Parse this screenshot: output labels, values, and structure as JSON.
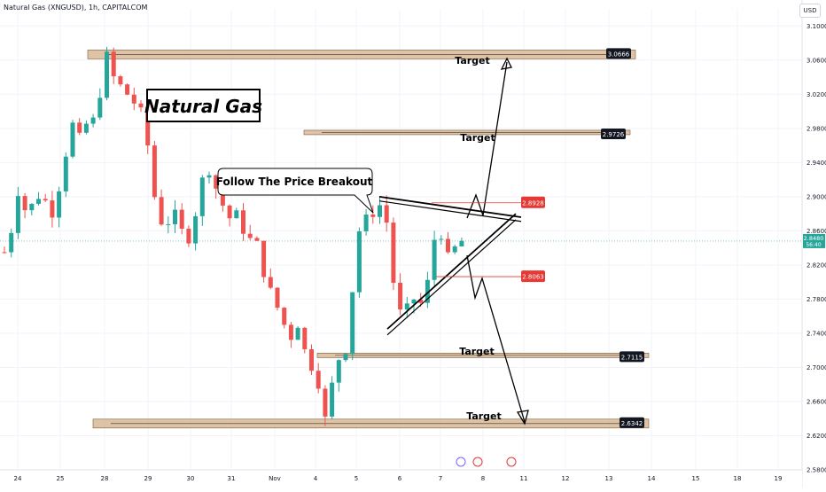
{
  "header": {
    "symbol_line": "Natural Gas (XNGUSD), 1h, CAPITALCOM",
    "currency_button": "USD"
  },
  "chart_data": {
    "type": "candlestick",
    "title": "Natural Gas",
    "ylim": [
      2.58,
      3.12
    ],
    "y_ticks": [
      "3.1000",
      "3.0600",
      "3.0200",
      "2.9800",
      "2.9400",
      "2.9000",
      "2.8600",
      "2.8200",
      "2.7800",
      "2.7400",
      "2.7000",
      "2.6600",
      "2.6200",
      "2.5800"
    ],
    "x_ticks": [
      "24",
      "25",
      "28",
      "29",
      "30",
      "31",
      "Nov",
      "4",
      "5",
      "6",
      "7",
      "8",
      "11",
      "12",
      "13",
      "14",
      "15",
      "18",
      "19"
    ],
    "current_price": {
      "value": "2.8480",
      "countdown": "56:40"
    },
    "price_path": [
      [
        0,
        2.835
      ],
      [
        1.5,
        2.86
      ],
      [
        2,
        2.905
      ],
      [
        3,
        2.885
      ],
      [
        4,
        2.89
      ],
      [
        5,
        2.9
      ],
      [
        6,
        2.895
      ],
      [
        7,
        2.88
      ],
      [
        8,
        2.91
      ],
      [
        9,
        2.95
      ],
      [
        10,
        2.985
      ],
      [
        11,
        2.97
      ],
      [
        12,
        2.985
      ],
      [
        13,
        2.99
      ],
      [
        14,
        3.02
      ],
      [
        15,
        3.066
      ],
      [
        16,
        3.04
      ],
      [
        17,
        3.03
      ],
      [
        18,
        3.02
      ],
      [
        19,
        3.01
      ],
      [
        20,
        3.0
      ],
      [
        21,
        2.96
      ],
      [
        22,
        2.9
      ],
      [
        23,
        2.87
      ],
      [
        24,
        2.87
      ],
      [
        25,
        2.88
      ],
      [
        26,
        2.86
      ],
      [
        27,
        2.85
      ],
      [
        28,
        2.88
      ],
      [
        29,
        2.92
      ],
      [
        30,
        2.93
      ],
      [
        31,
        2.91
      ],
      [
        32,
        2.89
      ],
      [
        33,
        2.875
      ],
      [
        34,
        2.88
      ],
      [
        35,
        2.86
      ],
      [
        36,
        2.85
      ],
      [
        37,
        2.845
      ],
      [
        38,
        2.81
      ],
      [
        39,
        2.79
      ],
      [
        40,
        2.77
      ],
      [
        41,
        2.75
      ],
      [
        42,
        2.735
      ],
      [
        43,
        2.75
      ],
      [
        44,
        2.72
      ],
      [
        45,
        2.7
      ],
      [
        46,
        2.68
      ],
      [
        47,
        2.64
      ],
      [
        48,
        2.68
      ],
      [
        49,
        2.71
      ],
      [
        50,
        2.72
      ],
      [
        51,
        2.79
      ],
      [
        52,
        2.86
      ],
      [
        53,
        2.875
      ],
      [
        54,
        2.88
      ],
      [
        55,
        2.89
      ],
      [
        56,
        2.87
      ],
      [
        57,
        2.8
      ],
      [
        58,
        2.765
      ],
      [
        59,
        2.77
      ],
      [
        60,
        2.78
      ],
      [
        61,
        2.775
      ],
      [
        62,
        2.8
      ],
      [
        63,
        2.85
      ],
      [
        64,
        2.855
      ],
      [
        65,
        2.83
      ],
      [
        66,
        2.84
      ],
      [
        67,
        2.848
      ]
    ],
    "levels": [
      {
        "value": 3.0666,
        "label": "3.0666",
        "annotation": "Target"
      },
      {
        "value": 2.9726,
        "label": "2.9726",
        "annotation": "Target"
      },
      {
        "value": 2.7115,
        "label": "2.7115",
        "annotation": "Target"
      },
      {
        "value": 2.6342,
        "label": "2.6342",
        "annotation": "Target"
      }
    ],
    "markers": [
      {
        "value": 2.8928,
        "label": "2.8928",
        "color": "#e53935"
      },
      {
        "value": 2.8063,
        "label": "2.8063",
        "color": "#e53935"
      }
    ],
    "callout": "Follow The  Price Breakout"
  },
  "colors": {
    "bull": "#26a69a",
    "bear": "#ef5350",
    "zone_fill": "#d9b895",
    "zone_stroke": "#7a5a3a",
    "grid": "#f0f3fa",
    "current_line": "#26a69a"
  }
}
